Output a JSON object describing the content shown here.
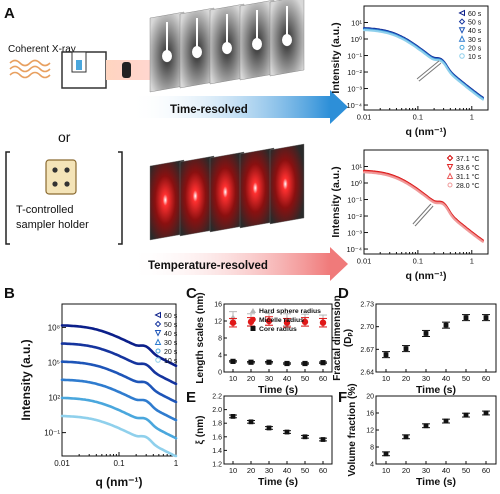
{
  "panel_letters": {
    "A": "A",
    "B": "B",
    "C": "C",
    "D": "D",
    "E": "E",
    "F": "F"
  },
  "schematic": {
    "source_label": "Coherent X-ray",
    "or_label": "or",
    "holder_label_line1": "T-controlled",
    "holder_label_line2": "sampler holder",
    "time_arrow_label": "Time-resolved",
    "temp_arrow_label": "Temperature-resolved"
  },
  "colors": {
    "time_series": [
      "#0b1f8a",
      "#15349e",
      "#1e55b8",
      "#2f7ccf",
      "#4aa7dd",
      "#8fd0ec"
    ],
    "temp_series": [
      "#d10000",
      "#e02828",
      "#ea5a5a",
      "#f09a9a"
    ],
    "hard_sphere": "#b6b6b6",
    "micelle": "#e01818",
    "core": "#111111",
    "time_arrow": "#2d8fd8",
    "temp_arrow": "#f08a8a"
  },
  "chart_data": [
    {
      "id": "A-top",
      "type": "scatter",
      "xlabel": "q (nm⁻¹)",
      "ylabel": "Intensity (a.u.)",
      "xscale": "log",
      "yscale": "log",
      "xlim": [
        0.01,
        2
      ],
      "ylim": [
        5e-05,
        100
      ],
      "xticks": [
        "0.01",
        "0.1",
        "1"
      ],
      "yticks": [
        "10⁻⁴",
        "10⁻³",
        "10⁻²",
        "10⁻¹",
        "10⁰",
        "10¹"
      ],
      "legend": [
        "60 s",
        "50 s",
        "40 s",
        "30 s",
        "20 s",
        "10 s"
      ],
      "legend_position": "top-right"
    },
    {
      "id": "A-bottom",
      "type": "scatter",
      "xlabel": "q (nm⁻¹)",
      "ylabel": "Intensity (a.u.)",
      "xscale": "log",
      "yscale": "log",
      "xlim": [
        0.01,
        2
      ],
      "ylim": [
        5e-05,
        100
      ],
      "xticks": [
        "0.01",
        "0.1",
        "1"
      ],
      "yticks": [
        "10⁻⁴",
        "10⁻³",
        "10⁻²",
        "10⁻¹",
        "10⁰",
        "10¹"
      ],
      "legend": [
        "37.1 °C",
        "33.6 °C",
        "31.1 °C",
        "28.0 °C"
      ],
      "legend_position": "top-right"
    },
    {
      "id": "B",
      "type": "line",
      "xlabel": "q (nm⁻¹)",
      "ylabel": "Intensity (a.u.)",
      "xscale": "log",
      "yscale": "log",
      "xlim": [
        0.01,
        1
      ],
      "ylim": [
        0.001,
        10000000000
      ],
      "xticks": [
        "0.01",
        "0.1",
        "1"
      ],
      "yticks": [
        "10⁻¹",
        "10²",
        "10⁵",
        "10⁸"
      ],
      "legend": [
        "60 s",
        "50 s",
        "40 s",
        "30 s",
        "20 s",
        "10 s"
      ],
      "legend_position": "top-right"
    },
    {
      "id": "C",
      "type": "scatter",
      "xlabel": "Time (s)",
      "ylabel": "Length scales (nm)",
      "ylim": [
        0,
        16
      ],
      "yticks": [
        "0",
        "4",
        "8",
        "12",
        "16"
      ],
      "x": [
        10,
        20,
        30,
        40,
        50,
        60
      ],
      "xticks": [
        "10",
        "20",
        "30",
        "40",
        "50",
        "60"
      ],
      "legend": [
        "Hard sphere radius",
        "Micelle radius",
        "Core radius"
      ],
      "legend_position": "top-right",
      "series": [
        {
          "name": "Hard sphere radius",
          "values": [
            12.8,
            12.3,
            12.4,
            12.3,
            12.2,
            12.0
          ]
        },
        {
          "name": "Micelle radius",
          "values": [
            11.6,
            11.8,
            12.0,
            11.6,
            11.8,
            11.6
          ]
        },
        {
          "name": "Core radius",
          "values": [
            2.5,
            2.3,
            2.3,
            2.0,
            2.0,
            2.2
          ]
        }
      ]
    },
    {
      "id": "D",
      "type": "scatter",
      "xlabel": "Time (s)",
      "ylabel": "Fractal dimension (Dₚ)",
      "ylim": [
        2.64,
        2.73
      ],
      "yticks": [
        "2.64",
        "2.67",
        "2.70",
        "2.73"
      ],
      "x": [
        10,
        20,
        30,
        40,
        50,
        60
      ],
      "xticks": [
        "10",
        "20",
        "30",
        "40",
        "50",
        "60"
      ],
      "values": [
        2.663,
        2.671,
        2.691,
        2.702,
        2.712,
        2.712
      ]
    },
    {
      "id": "E",
      "type": "scatter",
      "xlabel": "Time (s)",
      "ylabel": "ξ (nm)",
      "ylim": [
        1.2,
        2.2
      ],
      "yticks": [
        "1.2",
        "1.4",
        "1.6",
        "1.8",
        "2.0",
        "2.2"
      ],
      "x": [
        10,
        20,
        30,
        40,
        50,
        60
      ],
      "xticks": [
        "10",
        "20",
        "30",
        "40",
        "50",
        "60"
      ],
      "values": [
        1.9,
        1.82,
        1.73,
        1.67,
        1.6,
        1.56
      ]
    },
    {
      "id": "F",
      "type": "scatter",
      "xlabel": "Time (s)",
      "ylabel": "Volume fraction (%)",
      "ylim": [
        4,
        20
      ],
      "yticks": [
        "4",
        "8",
        "12",
        "16",
        "20"
      ],
      "x": [
        10,
        20,
        30,
        40,
        50,
        60
      ],
      "xticks": [
        "10",
        "20",
        "30",
        "40",
        "50",
        "60"
      ],
      "values": [
        6.4,
        10.4,
        13.0,
        14.1,
        15.5,
        16.0
      ]
    }
  ]
}
